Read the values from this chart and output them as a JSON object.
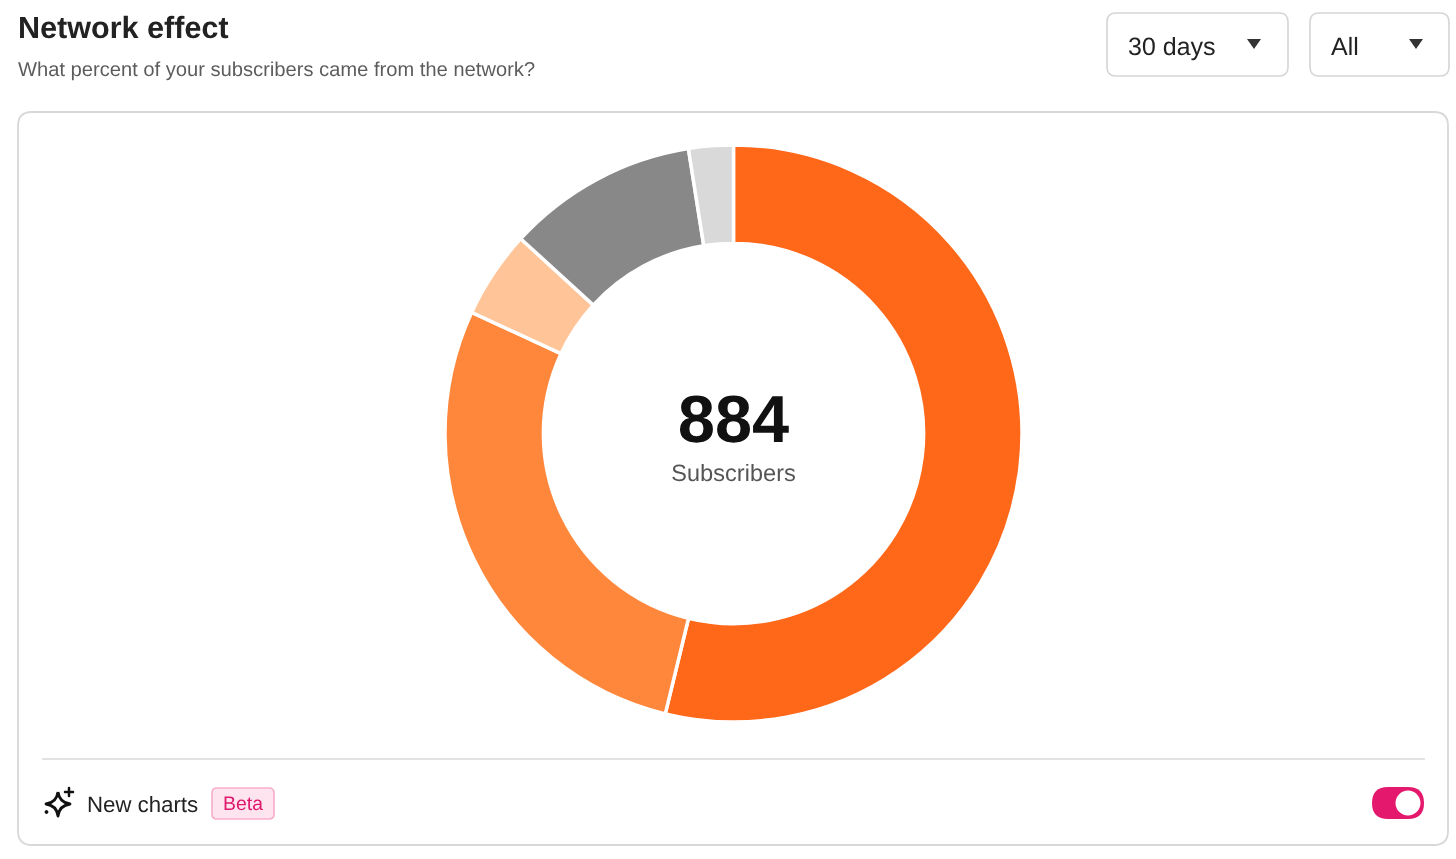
{
  "chart_data": {
    "type": "donut",
    "title": "Network effect",
    "subtitle": "What percent of your subscribers came from the network?",
    "categories": [
      null,
      null,
      null,
      null,
      null
    ],
    "values": [
      53.8,
      28.1,
      4.9,
      10.7,
      2.5
    ],
    "colors": [
      "#ff6719",
      "#ff873b",
      "#ffc497",
      "#888888",
      "#d9d9d9"
    ],
    "annotations": [
      "884",
      "Subscribers",
      "30 days",
      "All",
      "New charts",
      "Beta"
    ]
  }
}
